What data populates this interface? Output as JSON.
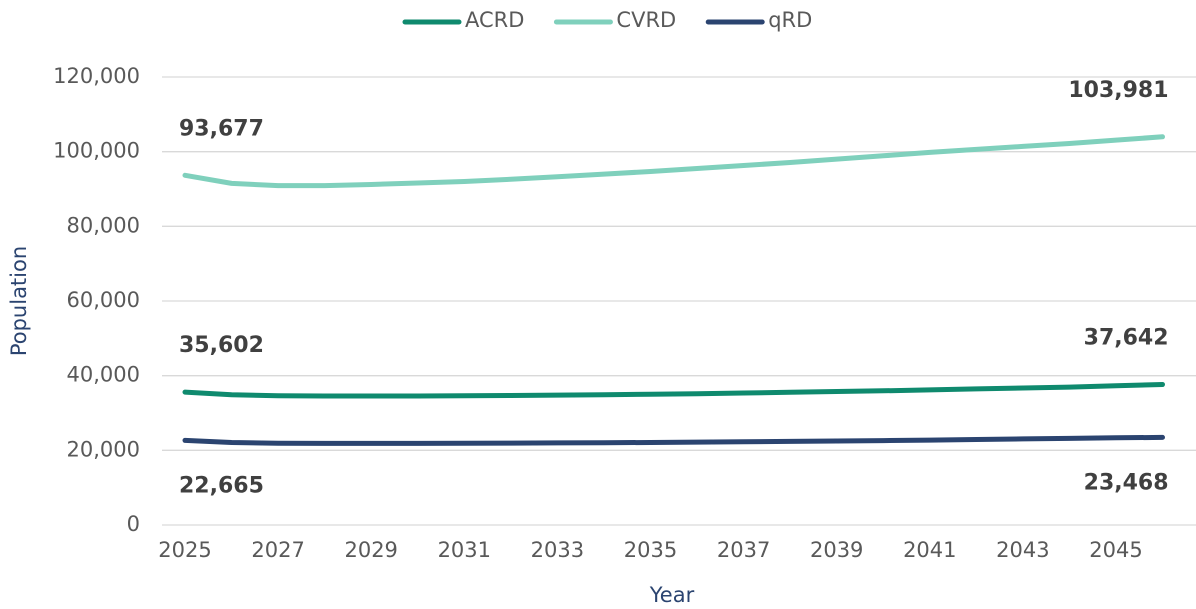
{
  "chart_data": {
    "type": "line",
    "x_label": "Year",
    "y_label": "Population",
    "categories": [
      "2025",
      null,
      "2027",
      null,
      "2029",
      null,
      "2031",
      null,
      "2033",
      null,
      "2035",
      null,
      "2037",
      null,
      "2039",
      null,
      "2041",
      null,
      "2043",
      null,
      "2045",
      null
    ],
    "series": [
      {
        "name": "ACRD",
        "color": "#0f8a6e",
        "values": [
          35602,
          34900,
          34600,
          34550,
          34550,
          34550,
          34600,
          34700,
          34800,
          34900,
          35000,
          35150,
          35350,
          35550,
          35750,
          35950,
          36200,
          36450,
          36700,
          36950,
          37300,
          37642
        ],
        "value_labels": [
          "35,602",
          null,
          null,
          null,
          null,
          null,
          null,
          null,
          null,
          null,
          null,
          null,
          null,
          null,
          null,
          null,
          null,
          null,
          null,
          null,
          null,
          "37,642"
        ]
      },
      {
        "name": "CVRD",
        "color": "#7fd0bc",
        "values": [
          93677,
          91500,
          90900,
          90900,
          91200,
          91600,
          92000,
          92600,
          93300,
          94000,
          94700,
          95500,
          96300,
          97100,
          98000,
          98900,
          99800,
          100600,
          101400,
          102200,
          103100,
          103981
        ],
        "value_labels": [
          "93,677",
          null,
          null,
          null,
          null,
          null,
          null,
          null,
          null,
          null,
          null,
          null,
          null,
          null,
          null,
          null,
          null,
          null,
          null,
          null,
          null,
          "103,981"
        ]
      },
      {
        "name": "qRD",
        "color": "#2b4470",
        "values": [
          22665,
          22100,
          21900,
          21850,
          21850,
          21850,
          21900,
          21950,
          22000,
          22050,
          22100,
          22200,
          22300,
          22400,
          22500,
          22600,
          22750,
          22900,
          23050,
          23200,
          23350,
          23468
        ],
        "value_labels": [
          "22,665",
          null,
          null,
          null,
          null,
          null,
          null,
          null,
          null,
          null,
          null,
          null,
          null,
          null,
          null,
          null,
          null,
          null,
          null,
          null,
          null,
          "23,468"
        ]
      }
    ],
    "ylim": [
      0,
      120000
    ],
    "yticks": [
      0,
      {
        "value": 20000,
        "label": "20,000"
      },
      {
        "value": 40000,
        "label": "40,000"
      },
      {
        "value": 60000,
        "label": "60,000"
      },
      {
        "value": 80000,
        "label": "80,000"
      },
      {
        "value": 100000,
        "label": "100,000"
      },
      {
        "value": 120000,
        "label": "120,000"
      }
    ],
    "grid": true,
    "legend": "top"
  }
}
